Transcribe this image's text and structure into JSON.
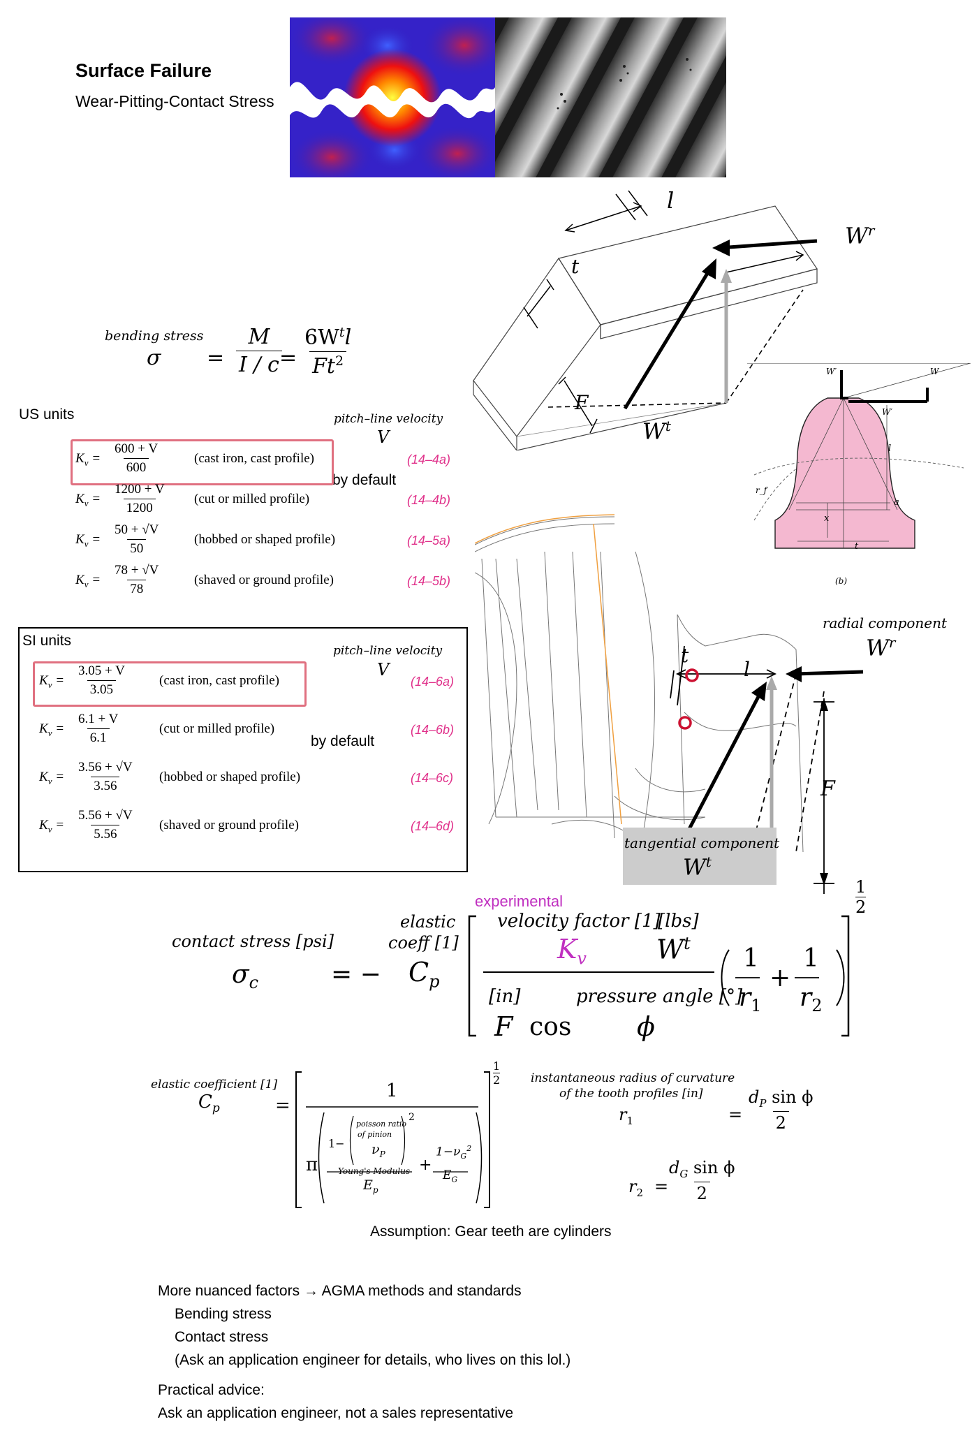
{
  "header": {
    "title": "Surface Failure",
    "subtitle": "Wear-Pitting-Contact Stress"
  },
  "bending": {
    "label": "bending stress",
    "sym": "σ",
    "eq1": "=",
    "M": "M",
    "Ic": "I / c",
    "eq2": "=",
    "num": "6W",
    "num_sup": "t",
    "num_l": "l",
    "den": "Ft",
    "den_sup": "2"
  },
  "us_units": {
    "label": "US units",
    "v_label": "pitch–line velocity",
    "v_sym": "V",
    "by_default": "by default",
    "rows": [
      {
        "lhs": "K",
        "sub": "v",
        "num": "600 + V",
        "den": "600",
        "desc": "(cast iron, cast profile)",
        "eq": "(14–4a)"
      },
      {
        "lhs": "K",
        "sub": "v",
        "num": "1200 + V",
        "den": "1200",
        "desc": "(cut or milled profile)",
        "eq": "(14–4b)"
      },
      {
        "lhs": "K",
        "sub": "v",
        "num": "50 + √V",
        "den": "50",
        "desc": "(hobbed or shaped profile)",
        "eq": "(14–5a)"
      },
      {
        "lhs": "K",
        "sub": "v",
        "num": "78 + √V",
        "den": "78",
        "desc": "(shaved or ground profile)",
        "eq": "(14–5b)"
      }
    ]
  },
  "si_units": {
    "label": "SI units",
    "v_label": "pitch–line velocity",
    "v_sym": "V",
    "by_default": "by default",
    "rows": [
      {
        "lhs": "K",
        "sub": "v",
        "num": "3.05 + V",
        "den": "3.05",
        "desc": "(cast iron, cast profile)",
        "eq": "(14–6a)"
      },
      {
        "lhs": "K",
        "sub": "v",
        "num": "6.1 + V",
        "den": "6.1",
        "desc": "(cut or milled profile)",
        "eq": "(14–6b)"
      },
      {
        "lhs": "K",
        "sub": "v",
        "num": "3.56 + √V",
        "den": "3.56",
        "desc": "(hobbed or shaped profile)",
        "eq": "(14–6c)"
      },
      {
        "lhs": "K",
        "sub": "v",
        "num": "5.56 + √V",
        "den": "5.56",
        "desc": "(shaved or ground profile)",
        "eq": "(14–6d)"
      }
    ]
  },
  "beam_diagram": {
    "l": "l",
    "t": "t",
    "F": "F",
    "Wr": "W",
    "Wr_sup": "r",
    "Wt": "W",
    "Wt_sup": "t"
  },
  "tooth_figure": {
    "Wr": "W′",
    "W": "W",
    "Wt": "W′",
    "l": "l",
    "x": "x",
    "t": "t",
    "a": "a",
    "rf": "r_f",
    "caption": "(b)"
  },
  "gear_diagram": {
    "radial_label": "radial component",
    "radial_sym": "W",
    "radial_sup": "r",
    "t": "t",
    "l": "l",
    "F": "F",
    "tangential_label": "tangential component",
    "tangential_sym": "W",
    "tangential_sup": "t"
  },
  "contact": {
    "label": "contact stress [psi]",
    "sym": "σ",
    "sub": "c",
    "eq": "= −",
    "cp_label1": "elastic",
    "cp_label2": "coeff [1]",
    "cp": "C",
    "cp_sub": "p",
    "experimental": "experimental",
    "vf_label": "velocity factor [1]",
    "lbs": "[lbs]",
    "kv": "K",
    "kv_sub": "v",
    "wt": "W",
    "wt_sup": "t",
    "in": "[in]",
    "pa_label": "pressure angle [°]",
    "F": "F",
    "cos": "cos",
    "phi": "ϕ",
    "one1": "1",
    "r1": "r",
    "r1_sub": "1",
    "plus": "+",
    "one2": "1",
    "r2": "r",
    "r2_sub": "2",
    "exp_num": "1",
    "exp_den": "2"
  },
  "cp_eq": {
    "label": "elastic coefficient [1]",
    "sym": "C",
    "sub": "p",
    "eq": "=",
    "one": "1",
    "pi": "π",
    "one_minus": "1−",
    "poisson1": "poisson ratio",
    "poisson2": "of pinion",
    "nu_p": "ν",
    "nu_p_sub": "P",
    "sq": "2",
    "youngs": "Young's Modulus",
    "Ep": "E",
    "Ep_sub": "p",
    "plus": "+",
    "g_num": "1−ν",
    "g_num_sub": "G",
    "g_num_sup": "2",
    "g_den": "E",
    "g_den_sub": "G",
    "exp_num": "1",
    "exp_den": "2"
  },
  "radius": {
    "label1": "instantaneous radius of curvature",
    "label2": "of the tooth profiles [in]",
    "r1": "r",
    "r1_sub": "1",
    "eq1": "=",
    "r1_num": "d",
    "r1_num_sub": "P",
    "r1_num_rest": " sin ϕ",
    "r1_den": "2",
    "r2": "r",
    "r2_sub": "2",
    "eq2": "=",
    "r2_num": "d",
    "r2_num_sub": "G",
    "r2_num_rest": " sin ϕ",
    "r2_den": "2"
  },
  "assumption": "Assumption: Gear teeth are cylinders",
  "notes": {
    "line1": "More nuanced factors → AGMA methods and standards",
    "line2": "Bending stress",
    "line3": "Contact stress",
    "line4": "(Ask an application engineer for details, who lives on this lol.)",
    "line5": "Practical advice:",
    "line6": "Ask an application engineer, not a sales representative"
  },
  "colors": {
    "pink_box": "#e07080",
    "eq_number": "#e0308a",
    "experimental": "#c030c0",
    "tooth_fill": "#f4b8d0",
    "red_marker": "#cc1030",
    "orange_line": "#f0a040"
  }
}
